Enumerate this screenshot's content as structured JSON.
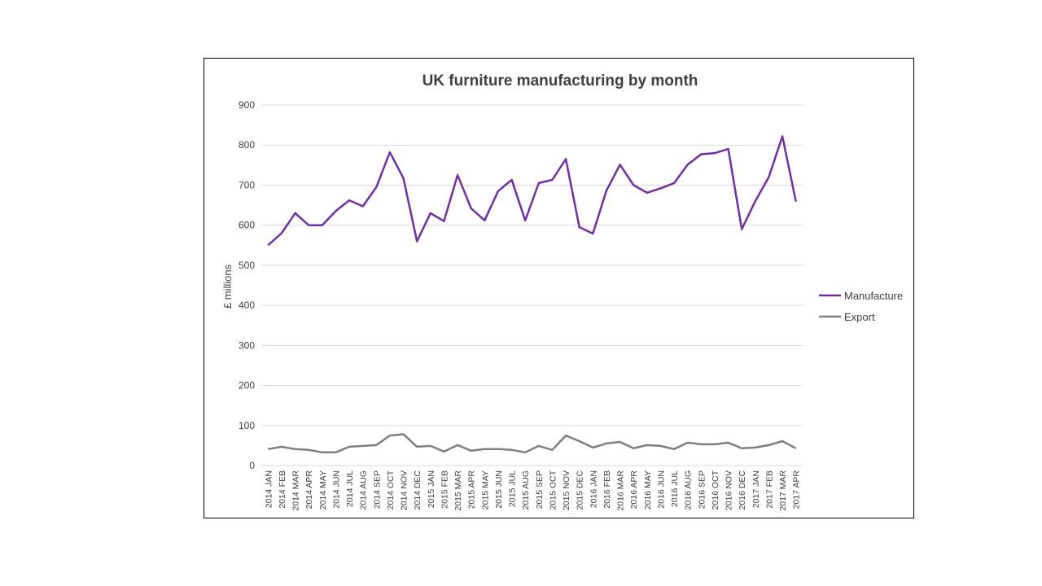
{
  "chart_data": {
    "type": "line",
    "title": "UK furniture manufacturing by month",
    "xlabel": "",
    "ylabel": "£ millions",
    "ylim": [
      0,
      900
    ],
    "yticks": [
      "0",
      "100",
      "200",
      "300",
      "400",
      "500",
      "600",
      "700",
      "800",
      "900"
    ],
    "grid": true,
    "legend_position": "right",
    "categories": [
      "2014 JAN",
      "2014 FEB",
      "2014 MAR",
      "2014 APR",
      "2014 MAY",
      "2014 JUN",
      "2014 JUL",
      "2014 AUG",
      "2014 SEP",
      "2014 OCT",
      "2014 NOV",
      "2014 DEC",
      "2015 JAN",
      "2015 FEB",
      "2015 MAR",
      "2015 APR",
      "2015 MAY",
      "2015 JUN",
      "2015 JUL",
      "2015 AUG",
      "2015 SEP",
      "2015 OCT",
      "2015 NOV",
      "2015 DEC",
      "2016 JAN",
      "2016 FEB",
      "2016 MAR",
      "2016 APR",
      "2016 MAY",
      "2016 JUN",
      "2016 JUL",
      "2016 AUG",
      "2016 SEP",
      "2016 OCT",
      "2016 NOV",
      "2016 DEC",
      "2017 JAN",
      "2017 FEB",
      "2017 MAR",
      "2017 APR"
    ],
    "series": [
      {
        "name": "Manufacture",
        "color": "#7030a0",
        "values": [
          550,
          580,
          630,
          600,
          600,
          635,
          662,
          647,
          695,
          782,
          717,
          560,
          630,
          610,
          725,
          642,
          612,
          685,
          713,
          612,
          705,
          713,
          765,
          595,
          579,
          686,
          751,
          700,
          681,
          692,
          705,
          751,
          777,
          780,
          790,
          590,
          660,
          720,
          822,
          659
        ]
      },
      {
        "name": "Export",
        "color": "#7f7f7f",
        "values": [
          41,
          47,
          41,
          39,
          33,
          33,
          47,
          49,
          51,
          75,
          78,
          47,
          49,
          35,
          51,
          37,
          41,
          41,
          39,
          33,
          49,
          39,
          75,
          61,
          45,
          55,
          59,
          43,
          51,
          49,
          41,
          57,
          53,
          53,
          57,
          43,
          45,
          51,
          61,
          43
        ]
      }
    ]
  }
}
